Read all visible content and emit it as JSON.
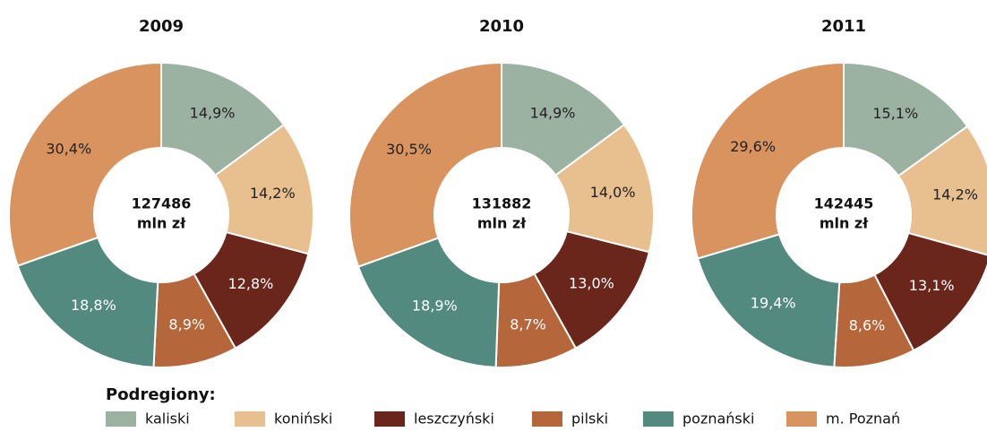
{
  "legend_title": "Podregiony:",
  "chart_data": [
    {
      "type": "pie",
      "title": "2009",
      "center_text": "127486",
      "center_unit": "mln zł",
      "categories": [
        "kaliski",
        "koniński",
        "leszczyński",
        "pilski",
        "poznański",
        "m. Poznań"
      ],
      "values": [
        14.9,
        14.2,
        12.8,
        8.9,
        18.8,
        30.4
      ],
      "value_labels": [
        "14,9%",
        "14,2%",
        "12,8%",
        "8,9%",
        "18,8%",
        "30,4%"
      ],
      "colors": [
        "#9bb1a2",
        "#e8bf8f",
        "#6b261c",
        "#b5663a",
        "#528a80",
        "#d9935f"
      ]
    },
    {
      "type": "pie",
      "title": "2010",
      "center_text": "131882",
      "center_unit": "mln zł",
      "categories": [
        "kaliski",
        "koniński",
        "leszczyński",
        "pilski",
        "poznański",
        "m. Poznań"
      ],
      "values": [
        14.9,
        14.0,
        13.0,
        8.7,
        18.9,
        30.5
      ],
      "value_labels": [
        "14,9%",
        "14,0%",
        "13,0%",
        "8,7%",
        "18,9%",
        "30,5%"
      ],
      "colors": [
        "#9bb1a2",
        "#e8bf8f",
        "#6b261c",
        "#b5663a",
        "#528a80",
        "#d9935f"
      ]
    },
    {
      "type": "pie",
      "title": "2011",
      "center_text": "142445",
      "center_unit": "mln zł",
      "categories": [
        "kaliski",
        "koniński",
        "leszczyński",
        "pilski",
        "poznański",
        "m. Poznań"
      ],
      "values": [
        15.1,
        14.2,
        13.1,
        8.6,
        19.4,
        29.6
      ],
      "value_labels": [
        "15,1%",
        "14,2%",
        "13,1%",
        "8,6%",
        "19,4%",
        "29,6%"
      ],
      "colors": [
        "#9bb1a2",
        "#e8bf8f",
        "#6b261c",
        "#b5663a",
        "#528a80",
        "#d9935f"
      ]
    }
  ]
}
